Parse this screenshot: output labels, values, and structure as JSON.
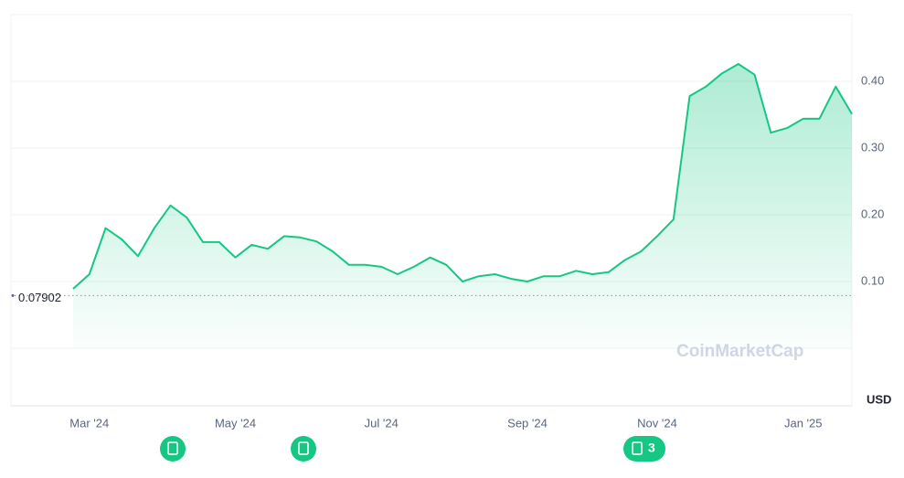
{
  "chart_data": {
    "type": "line",
    "categories": [
      null,
      "Mar '24",
      null,
      null,
      null,
      null,
      null,
      null,
      null,
      null,
      "May '24",
      null,
      null,
      null,
      null,
      null,
      null,
      null,
      null,
      "Jul '24",
      null,
      null,
      null,
      null,
      null,
      null,
      null,
      null,
      "Sep '24",
      null,
      null,
      null,
      null,
      null,
      null,
      null,
      "Nov '24",
      null,
      null,
      null,
      null,
      null,
      null,
      null,
      null,
      "Jan '25",
      null,
      null,
      null
    ],
    "series": [
      {
        "name": null,
        "color": "#16c784",
        "values": [
          0.089,
          0.111,
          0.18,
          0.163,
          0.138,
          0.18,
          0.214,
          0.196,
          0.159,
          0.159,
          0.136,
          0.155,
          0.149,
          0.168,
          0.166,
          0.16,
          0.145,
          0.125,
          0.125,
          0.122,
          0.111,
          0.122,
          0.136,
          0.125,
          0.1,
          0.108,
          0.111,
          0.104,
          0.1,
          0.108,
          0.108,
          0.116,
          0.111,
          0.114,
          0.132,
          0.145,
          0.168,
          0.193,
          0.378,
          0.392,
          0.412,
          0.426,
          0.41,
          0.323,
          0.33,
          0.344,
          0.344,
          0.392,
          0.351
        ]
      }
    ],
    "ylim": [
      0,
      0.5
    ],
    "yticks": [
      {
        "value": 0.1,
        "label": "0.10"
      },
      {
        "value": 0.2,
        "label": "0.20"
      },
      {
        "value": 0.3,
        "label": "0.30"
      },
      {
        "value": 0.4,
        "label": "0.40"
      }
    ],
    "grid": true,
    "start_price": 0.07902,
    "y_unit": "USD",
    "watermark": "CoinMarketCap",
    "event_count": 3
  }
}
